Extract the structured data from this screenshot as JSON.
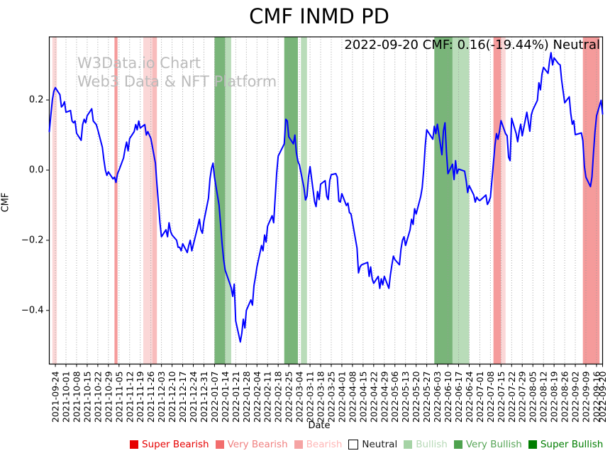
{
  "title": "CMF INMD PD",
  "annotation": "2022-09-20 CMF: 0.16(-19.44%) Neutral",
  "watermark": {
    "line1": "W3Data.io Chart",
    "line2": "Web3 Data & NFT Platform"
  },
  "legend": {
    "items": [
      {
        "label": "Super Bearish",
        "swatch": "#e60000",
        "text_color": "#e60000",
        "border": "none"
      },
      {
        "label": "Very Bearish",
        "swatch": "#f26d6d",
        "text_color": "#f08080",
        "border": "none"
      },
      {
        "label": "Bearish",
        "swatch": "#f5a3a3",
        "text_color": "#ffb6b6",
        "border": "none"
      },
      {
        "label": "Neutral",
        "swatch": "#ffffff",
        "text_color": "#1a1a1a",
        "border": "#000000"
      },
      {
        "label": "Bullish",
        "swatch": "#a5d3a5",
        "text_color": "#b7d9b7",
        "border": "none"
      },
      {
        "label": "Very Bullish",
        "swatch": "#4ea24e",
        "text_color": "#57a557",
        "border": "none"
      },
      {
        "label": "Super Bullish",
        "swatch": "#007d00",
        "text_color": "#007d00",
        "border": "none"
      }
    ]
  },
  "chart_data": {
    "type": "line",
    "title": "CMF INMD PD",
    "xlabel": "Date",
    "ylabel": "CMF",
    "grid": "x-only-dotted",
    "legend_position": "bottom",
    "line_color": "#0000ff",
    "line_width": 2,
    "xlim": [
      "2021-09-20",
      "2022-09-20"
    ],
    "ylim": [
      -0.553,
      0.38
    ],
    "y_ticks": [
      0.2,
      0.0,
      -0.2,
      -0.4
    ],
    "y_tick_labels": [
      "0.2",
      "0.0",
      "−0.2",
      "−0.4"
    ],
    "x_ticks": [
      "2021-09-24",
      "2021-10-01",
      "2021-10-08",
      "2021-10-15",
      "2021-10-22",
      "2021-10-29",
      "2021-11-05",
      "2021-11-12",
      "2021-11-19",
      "2021-11-26",
      "2021-12-03",
      "2021-12-10",
      "2021-12-17",
      "2021-12-24",
      "2021-12-31",
      "2022-01-07",
      "2022-01-14",
      "2022-01-21",
      "2022-01-28",
      "2022-02-04",
      "2022-02-11",
      "2022-02-18",
      "2022-02-25",
      "2022-03-04",
      "2022-03-11",
      "2022-03-18",
      "2022-03-25",
      "2022-04-01",
      "2022-04-08",
      "2022-04-15",
      "2022-04-22",
      "2022-04-29",
      "2022-05-06",
      "2022-05-13",
      "2022-05-20",
      "2022-05-27",
      "2022-06-03",
      "2022-06-10",
      "2022-06-17",
      "2022-06-24",
      "2022-07-01",
      "2022-07-08",
      "2022-07-15",
      "2022-07-22",
      "2022-07-29",
      "2022-08-05",
      "2022-08-12",
      "2022-08-19",
      "2022-08-26",
      "2022-09-02",
      "2022-09-09",
      "2022-09-16",
      "2022-09-20"
    ],
    "bands": [
      {
        "level": "Bearish",
        "from": "2021-09-22",
        "to": "2021-09-25",
        "color": "#fbd7d7"
      },
      {
        "level": "Very Bearish",
        "from": "2021-11-02",
        "to": "2021-11-04",
        "color": "#f59b9b"
      },
      {
        "level": "Bearish",
        "from": "2021-11-21",
        "to": "2021-11-27",
        "color": "#fbd7d7"
      },
      {
        "level": "Very Bearish",
        "from": "2021-11-27",
        "to": "2021-11-30",
        "color": "#f8bcbc"
      },
      {
        "level": "Very Bullish",
        "from": "2022-01-07",
        "to": "2022-01-14",
        "color": "#79b579"
      },
      {
        "level": "Bullish",
        "from": "2022-01-14",
        "to": "2022-01-18",
        "color": "#b9dcb9"
      },
      {
        "level": "Very Bullish",
        "from": "2022-02-22",
        "to": "2022-03-03",
        "color": "#79b579"
      },
      {
        "level": "Bullish",
        "from": "2022-03-05",
        "to": "2022-03-09",
        "color": "#b9dcb9"
      },
      {
        "level": "Very Bullish",
        "from": "2022-06-01",
        "to": "2022-06-13",
        "color": "#79b579"
      },
      {
        "level": "Bullish",
        "from": "2022-06-13",
        "to": "2022-06-24",
        "color": "#b9dcb9"
      },
      {
        "level": "Very Bearish",
        "from": "2022-07-10",
        "to": "2022-07-15",
        "color": "#f59b9b"
      },
      {
        "level": "Bearish",
        "from": "2022-07-15",
        "to": "2022-07-18",
        "color": "#fbd7d7"
      },
      {
        "level": "Very Bearish",
        "from": "2022-09-07",
        "to": "2022-09-18",
        "color": "#f59b9b"
      }
    ],
    "series": [
      {
        "name": "CMF",
        "dates": [
          "2021-09-20",
          "2021-09-21",
          "2021-09-22",
          "2021-09-23",
          "2021-09-24",
          "2021-09-27",
          "2021-09-28",
          "2021-09-29",
          "2021-09-30",
          "2021-10-01",
          "2021-10-04",
          "2021-10-05",
          "2021-10-06",
          "2021-10-07",
          "2021-10-08",
          "2021-10-11",
          "2021-10-12",
          "2021-10-13",
          "2021-10-14",
          "2021-10-15",
          "2021-10-18",
          "2021-10-19",
          "2021-10-20",
          "2021-10-21",
          "2021-10-22",
          "2021-10-25",
          "2021-10-26",
          "2021-10-27",
          "2021-10-28",
          "2021-10-29",
          "2021-11-01",
          "2021-11-02",
          "2021-11-03",
          "2021-11-04",
          "2021-11-05",
          "2021-11-08",
          "2021-11-09",
          "2021-11-10",
          "2021-11-11",
          "2021-11-12",
          "2021-11-15",
          "2021-11-16",
          "2021-11-17",
          "2021-11-18",
          "2021-11-19",
          "2021-11-22",
          "2021-11-23",
          "2021-11-24",
          "2021-11-26",
          "2021-11-29",
          "2021-11-30",
          "2021-12-01",
          "2021-12-02",
          "2021-12-03",
          "2021-12-06",
          "2021-12-07",
          "2021-12-08",
          "2021-12-09",
          "2021-12-10",
          "2021-12-13",
          "2021-12-14",
          "2021-12-15",
          "2021-12-16",
          "2021-12-17",
          "2021-12-20",
          "2021-12-21",
          "2021-12-22",
          "2021-12-23",
          "2021-12-27",
          "2021-12-28",
          "2021-12-29",
          "2021-12-30",
          "2021-12-31",
          "2022-01-03",
          "2022-01-04",
          "2022-01-05",
          "2022-01-06",
          "2022-01-07",
          "2022-01-10",
          "2022-01-11",
          "2022-01-12",
          "2022-01-13",
          "2022-01-14",
          "2022-01-18",
          "2022-01-19",
          "2022-01-20",
          "2022-01-21",
          "2022-01-24",
          "2022-01-25",
          "2022-01-26",
          "2022-01-27",
          "2022-01-28",
          "2022-01-31",
          "2022-02-01",
          "2022-02-02",
          "2022-02-03",
          "2022-02-04",
          "2022-02-07",
          "2022-02-08",
          "2022-02-09",
          "2022-02-10",
          "2022-02-11",
          "2022-02-14",
          "2022-02-15",
          "2022-02-16",
          "2022-02-17",
          "2022-02-18",
          "2022-02-22",
          "2022-02-23",
          "2022-02-24",
          "2022-02-25",
          "2022-02-28",
          "2022-03-01",
          "2022-03-02",
          "2022-03-03",
          "2022-03-04",
          "2022-03-07",
          "2022-03-08",
          "2022-03-09",
          "2022-03-10",
          "2022-03-11",
          "2022-03-14",
          "2022-03-15",
          "2022-03-16",
          "2022-03-17",
          "2022-03-18",
          "2022-03-21",
          "2022-03-22",
          "2022-03-23",
          "2022-03-24",
          "2022-03-25",
          "2022-03-28",
          "2022-03-29",
          "2022-03-30",
          "2022-03-31",
          "2022-04-01",
          "2022-04-04",
          "2022-04-05",
          "2022-04-06",
          "2022-04-07",
          "2022-04-08",
          "2022-04-11",
          "2022-04-12",
          "2022-04-13",
          "2022-04-14",
          "2022-04-18",
          "2022-04-19",
          "2022-04-20",
          "2022-04-21",
          "2022-04-22",
          "2022-04-25",
          "2022-04-26",
          "2022-04-27",
          "2022-04-28",
          "2022-04-29",
          "2022-05-02",
          "2022-05-03",
          "2022-05-04",
          "2022-05-05",
          "2022-05-06",
          "2022-05-09",
          "2022-05-10",
          "2022-05-11",
          "2022-05-12",
          "2022-05-13",
          "2022-05-16",
          "2022-05-17",
          "2022-05-18",
          "2022-05-19",
          "2022-05-20",
          "2022-05-23",
          "2022-05-24",
          "2022-05-25",
          "2022-05-26",
          "2022-05-27",
          "2022-05-31",
          "2022-06-01",
          "2022-06-02",
          "2022-06-03",
          "2022-06-06",
          "2022-06-07",
          "2022-06-08",
          "2022-06-09",
          "2022-06-10",
          "2022-06-13",
          "2022-06-14",
          "2022-06-15",
          "2022-06-16",
          "2022-06-17",
          "2022-06-21",
          "2022-06-22",
          "2022-06-23",
          "2022-06-24",
          "2022-06-27",
          "2022-06-28",
          "2022-06-29",
          "2022-06-30",
          "2022-07-01",
          "2022-07-05",
          "2022-07-06",
          "2022-07-07",
          "2022-07-08",
          "2022-07-11",
          "2022-07-12",
          "2022-07-13",
          "2022-07-14",
          "2022-07-15",
          "2022-07-18",
          "2022-07-19",
          "2022-07-20",
          "2022-07-21",
          "2022-07-22",
          "2022-07-25",
          "2022-07-26",
          "2022-07-27",
          "2022-07-28",
          "2022-07-29",
          "2022-08-01",
          "2022-08-02",
          "2022-08-03",
          "2022-08-04",
          "2022-08-05",
          "2022-08-08",
          "2022-08-09",
          "2022-08-10",
          "2022-08-11",
          "2022-08-12",
          "2022-08-15",
          "2022-08-16",
          "2022-08-17",
          "2022-08-18",
          "2022-08-19",
          "2022-08-22",
          "2022-08-23",
          "2022-08-24",
          "2022-08-26",
          "2022-08-29",
          "2022-08-30",
          "2022-08-31",
          "2022-09-01",
          "2022-09-02",
          "2022-09-06",
          "2022-09-07",
          "2022-09-08",
          "2022-09-09",
          "2022-09-12",
          "2022-09-13",
          "2022-09-14",
          "2022-09-15",
          "2022-09-16",
          "2022-09-19",
          "2022-09-20"
        ],
        "values": [
          0.11,
          0.155,
          0.2,
          0.225,
          0.235,
          0.215,
          0.18,
          0.185,
          0.195,
          0.165,
          0.17,
          0.14,
          0.135,
          0.14,
          0.105,
          0.085,
          0.13,
          0.145,
          0.135,
          0.155,
          0.175,
          0.14,
          0.135,
          0.13,
          0.115,
          0.065,
          0.03,
          0.0,
          -0.015,
          -0.005,
          -0.025,
          -0.02,
          -0.035,
          -0.01,
          0.0,
          0.035,
          0.06,
          0.08,
          0.055,
          0.09,
          0.11,
          0.13,
          0.115,
          0.14,
          0.12,
          0.13,
          0.1,
          0.11,
          0.09,
          0.02,
          -0.04,
          -0.095,
          -0.15,
          -0.19,
          -0.17,
          -0.19,
          -0.15,
          -0.175,
          -0.185,
          -0.2,
          -0.22,
          -0.22,
          -0.23,
          -0.21,
          -0.235,
          -0.215,
          -0.2,
          -0.23,
          -0.16,
          -0.14,
          -0.17,
          -0.18,
          -0.145,
          -0.08,
          -0.025,
          0.005,
          0.02,
          -0.02,
          -0.1,
          -0.155,
          -0.21,
          -0.255,
          -0.285,
          -0.335,
          -0.36,
          -0.325,
          -0.43,
          -0.49,
          -0.465,
          -0.425,
          -0.45,
          -0.4,
          -0.37,
          -0.385,
          -0.33,
          -0.305,
          -0.275,
          -0.215,
          -0.23,
          -0.185,
          -0.205,
          -0.16,
          -0.13,
          -0.15,
          -0.08,
          -0.01,
          0.04,
          0.075,
          0.145,
          0.14,
          0.095,
          0.075,
          0.1,
          0.05,
          0.025,
          0.015,
          -0.05,
          -0.085,
          -0.074,
          -0.02,
          0.01,
          -0.09,
          -0.104,
          -0.061,
          -0.084,
          -0.04,
          -0.03,
          -0.074,
          -0.084,
          -0.03,
          -0.013,
          -0.01,
          -0.02,
          -0.088,
          -0.091,
          -0.067,
          -0.101,
          -0.094,
          -0.121,
          -0.125,
          -0.148,
          -0.222,
          -0.293,
          -0.276,
          -0.27,
          -0.263,
          -0.303,
          -0.276,
          -0.31,
          -0.323,
          -0.303,
          -0.337,
          -0.31,
          -0.327,
          -0.303,
          -0.337,
          -0.3,
          -0.27,
          -0.245,
          -0.255,
          -0.27,
          -0.225,
          -0.2,
          -0.19,
          -0.215,
          -0.17,
          -0.14,
          -0.155,
          -0.11,
          -0.125,
          -0.075,
          -0.05,
          0.0,
          0.07,
          0.115,
          0.088,
          0.125,
          0.104,
          0.131,
          0.044,
          0.111,
          0.135,
          0.051,
          -0.01,
          0.017,
          -0.027,
          0.027,
          -0.01,
          0.003,
          -0.003,
          -0.03,
          -0.064,
          -0.044,
          -0.071,
          -0.091,
          -0.077,
          -0.084,
          -0.087,
          -0.071,
          -0.098,
          -0.09,
          -0.077,
          0.071,
          0.104,
          0.088,
          0.111,
          0.141,
          0.104,
          0.098,
          0.037,
          0.027,
          0.148,
          0.104,
          0.081,
          0.111,
          0.131,
          0.098,
          0.165,
          0.138,
          0.111,
          0.158,
          0.172,
          0.199,
          0.249,
          0.229,
          0.273,
          0.293,
          0.276,
          0.31,
          0.335,
          0.3,
          0.32,
          0.303,
          0.3,
          0.256,
          0.192,
          0.209,
          0.162,
          0.131,
          0.141,
          0.101,
          0.106,
          0.084,
          0.01,
          -0.02,
          -0.047,
          -0.02,
          0.05,
          0.11,
          0.155,
          0.199,
          0.16
        ]
      }
    ]
  }
}
